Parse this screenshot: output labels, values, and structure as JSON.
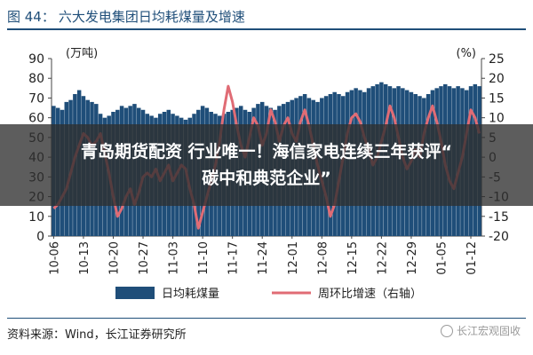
{
  "header": {
    "figure_label": "图 44：",
    "title": "六大发电集团日均耗煤量及增速"
  },
  "source": "资料来源：Wind，长江证券研究所",
  "watermark": "长江宏观固收",
  "overlay": {
    "line1": "青岛期货配资 行业唯一！海信家电连续三年获评“",
    "line2": "碳中和典范企业”"
  },
  "colors": {
    "bar": "#1f4e79",
    "line": "#e06c75",
    "title": "#1f4e79"
  },
  "chart_data": {
    "type": "bar",
    "left_unit": "(万吨)",
    "right_unit": "(%)",
    "y_left": {
      "min": 0,
      "max": 90,
      "ticks": [
        0,
        10,
        20,
        30,
        40,
        50,
        60,
        70,
        80,
        90
      ]
    },
    "y_right": {
      "min": -20,
      "max": 25,
      "ticks": [
        -20,
        -15,
        -10,
        -5,
        0,
        5,
        10,
        15,
        20,
        25
      ]
    },
    "x_tick_labels": [
      "10-06",
      "10-13",
      "10-20",
      "10-27",
      "11-03",
      "11-10",
      "11-17",
      "11-24",
      "12-01",
      "12-08",
      "12-15",
      "12-22",
      "12-29",
      "01-05",
      "01-12"
    ],
    "x_tick_index": [
      0,
      7,
      14,
      21,
      28,
      35,
      42,
      49,
      56,
      63,
      70,
      77,
      84,
      91,
      98
    ],
    "series": [
      {
        "name": "日均耗煤量",
        "axis": "left",
        "kind": "bar",
        "values": [
          66,
          65,
          64,
          68,
          69,
          72,
          74,
          71,
          69,
          68,
          67,
          62,
          60,
          61,
          63,
          64,
          66,
          65,
          66,
          67,
          65,
          64,
          62,
          61,
          60,
          62,
          63,
          64,
          62,
          61,
          60,
          59,
          60,
          62,
          64,
          66,
          65,
          63,
          62,
          61,
          62,
          63,
          64,
          65,
          66,
          64,
          63,
          65,
          67,
          68,
          66,
          65,
          64,
          66,
          67,
          68,
          69,
          70,
          71,
          72,
          70,
          69,
          68,
          70,
          71,
          72,
          73,
          72,
          71,
          73,
          74,
          75,
          74,
          73,
          75,
          76,
          77,
          78,
          77,
          76,
          75,
          76,
          75,
          74,
          73,
          72,
          71,
          70,
          72,
          74,
          75,
          76,
          77,
          76,
          75,
          76,
          75,
          74,
          76,
          77,
          76
        ]
      },
      {
        "name": "周环比增速",
        "axis": "right",
        "kind": "line",
        "values": [
          -13,
          -12,
          -10,
          -8,
          -4,
          0,
          3,
          6,
          5,
          3,
          4,
          6,
          1,
          -4,
          -10,
          -15,
          -13,
          -10,
          -8,
          -12,
          -9,
          -5,
          -4,
          -5,
          -3,
          -6,
          -4,
          -2,
          -6,
          -4,
          -2,
          -3,
          -8,
          -12,
          -18,
          -14,
          -10,
          -6,
          -2,
          4,
          12,
          18,
          14,
          8,
          3,
          0,
          5,
          10,
          8,
          3,
          6,
          12,
          9,
          4,
          8,
          10,
          6,
          4,
          9,
          12,
          8,
          3,
          -2,
          -6,
          -10,
          -15,
          -12,
          -6,
          0,
          6,
          10,
          11,
          9,
          5,
          2,
          -2,
          0,
          4,
          8,
          13,
          10,
          5,
          0,
          -3,
          -1,
          2,
          0,
          6,
          10,
          13,
          9,
          4,
          -2,
          -6,
          -8,
          -4,
          0,
          6,
          12,
          10,
          6
        ]
      }
    ],
    "legend": {
      "placement": "bottom",
      "items": [
        "日均耗煤量",
        "周环比增速（右轴）"
      ]
    }
  }
}
